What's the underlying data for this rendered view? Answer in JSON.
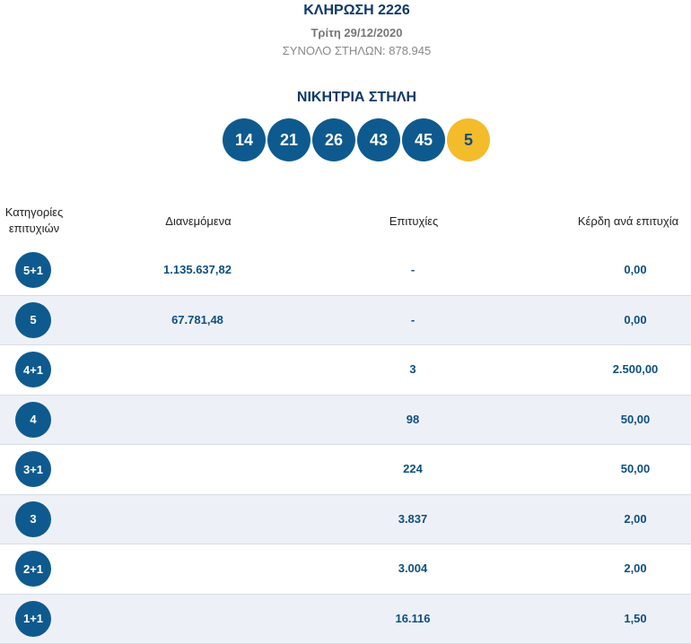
{
  "draw": {
    "title": "ΚΛΗΡΩΣΗ 2226",
    "date": "Τρίτη 29/12/2020",
    "total_columns": "ΣΥΝΟΛΟ ΣΤΗΛΩΝ: 878.945"
  },
  "winning": {
    "title": "ΝΙΚΗΤΡΙΑ ΣΤΗΛΗ",
    "numbers": [
      "14",
      "21",
      "26",
      "43",
      "45"
    ],
    "joker": "5"
  },
  "table": {
    "headers": {
      "category": "Κατηγορίες επιτυχιών",
      "distributed": "Διανεμόμενα",
      "winners": "Επιτυχίες",
      "prize_per_winner": "Κέρδη ανά επιτυχία"
    },
    "rows": [
      {
        "category": "5+1",
        "distributed": "1.135.637,82",
        "winners": "-",
        "prize": "0,00"
      },
      {
        "category": "5",
        "distributed": "67.781,48",
        "winners": "-",
        "prize": "0,00"
      },
      {
        "category": "4+1",
        "distributed": "",
        "winners": "3",
        "prize": "2.500,00"
      },
      {
        "category": "4",
        "distributed": "",
        "winners": "98",
        "prize": "50,00"
      },
      {
        "category": "3+1",
        "distributed": "",
        "winners": "224",
        "prize": "50,00"
      },
      {
        "category": "3",
        "distributed": "",
        "winners": "3.837",
        "prize": "2,00"
      },
      {
        "category": "2+1",
        "distributed": "",
        "winners": "3.004",
        "prize": "2,00"
      },
      {
        "category": "1+1",
        "distributed": "",
        "winners": "16.116",
        "prize": "1,50"
      }
    ]
  },
  "colors": {
    "ball_blue": "#0e5a8e",
    "joker_yellow": "#f4bb2a",
    "title_navy": "#0f3969",
    "row_alt": "#eef0f7"
  }
}
